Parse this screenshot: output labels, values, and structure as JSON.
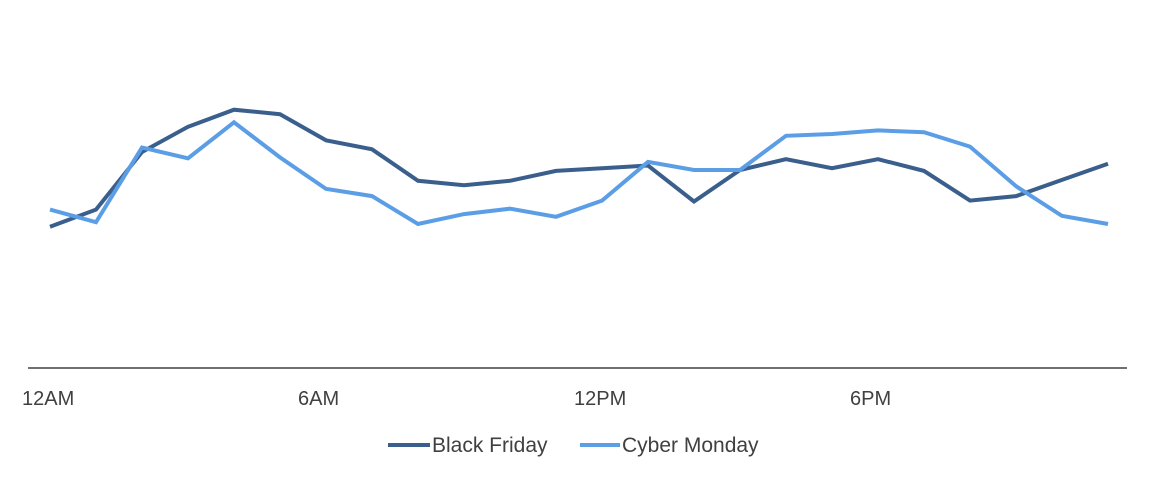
{
  "chart_data": {
    "type": "line",
    "title": "",
    "xlabel": "",
    "ylabel": "",
    "x": [
      0,
      1,
      2,
      3,
      4,
      5,
      6,
      7,
      8,
      9,
      10,
      11,
      12,
      13,
      14,
      15,
      16,
      17,
      18,
      19,
      20,
      21,
      22,
      23
    ],
    "x_tick_labels": [
      {
        "x": 0,
        "label": "12AM"
      },
      {
        "x": 6,
        "label": "6AM"
      },
      {
        "x": 12,
        "label": "12PM"
      },
      {
        "x": 18,
        "label": "6PM"
      }
    ],
    "ylim": [
      0,
      300
    ],
    "grid": false,
    "legend_position": "bottom",
    "series": [
      {
        "name": "Black Friday",
        "color": "#3a5f8c",
        "values": [
          157,
          176,
          240,
          268,
          287,
          282,
          253,
          243,
          208,
          203,
          208,
          219,
          222,
          225,
          185,
          220,
          232,
          222,
          232,
          219,
          186,
          191,
          209,
          227
        ]
      },
      {
        "name": "Cyber Monday",
        "color": "#5b9ee6",
        "values": [
          176,
          162,
          245,
          233,
          273,
          234,
          199,
          191,
          160,
          171,
          177,
          168,
          186,
          229,
          220,
          220,
          258,
          260,
          264,
          262,
          246,
          202,
          169,
          160
        ]
      }
    ]
  }
}
